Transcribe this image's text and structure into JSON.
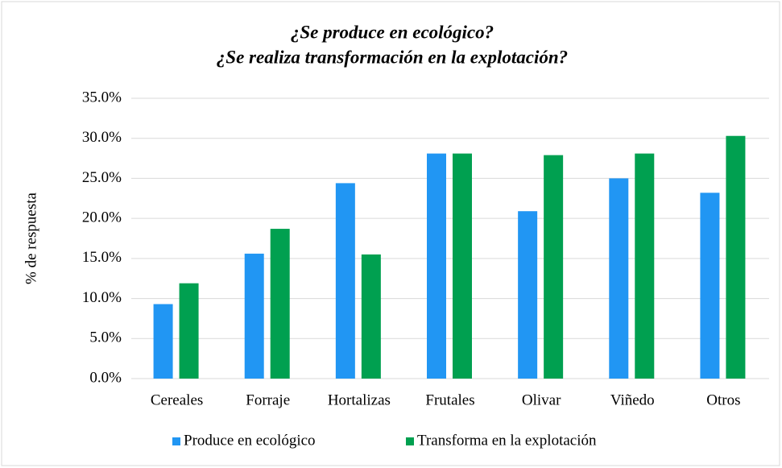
{
  "chart_data": {
    "type": "bar",
    "title": [
      "¿Se produce en ecológico?",
      "¿Se realiza transformación en la explotación?"
    ],
    "y_label": "% de respuesta",
    "categories": [
      "Cereales",
      "Forraje",
      "Hortalizas",
      "Frutales",
      "Olivar",
      "Viñedo",
      "Otros"
    ],
    "series": [
      {
        "name": "Produce en ecológico",
        "color": "#2196f3",
        "values": [
          9.3,
          15.6,
          24.4,
          28.1,
          20.9,
          25.0,
          23.2
        ]
      },
      {
        "name": "Transforma en la explotación",
        "color": "#00a050",
        "values": [
          11.9,
          18.7,
          15.5,
          28.1,
          27.9,
          28.1,
          30.3
        ]
      }
    ],
    "ylim": [
      0,
      35
    ],
    "yticks": [
      {
        "value": 0,
        "label": "0.0%"
      },
      {
        "value": 5,
        "label": "5.0%"
      },
      {
        "value": 10,
        "label": "10.0%"
      },
      {
        "value": 15,
        "label": "15.0%"
      },
      {
        "value": 20,
        "label": "20.0%"
      },
      {
        "value": 25,
        "label": "25.0%"
      },
      {
        "value": 30,
        "label": "30.0%"
      },
      {
        "value": 35,
        "label": "35.0%"
      }
    ],
    "grid": true,
    "legend": "bottom"
  }
}
